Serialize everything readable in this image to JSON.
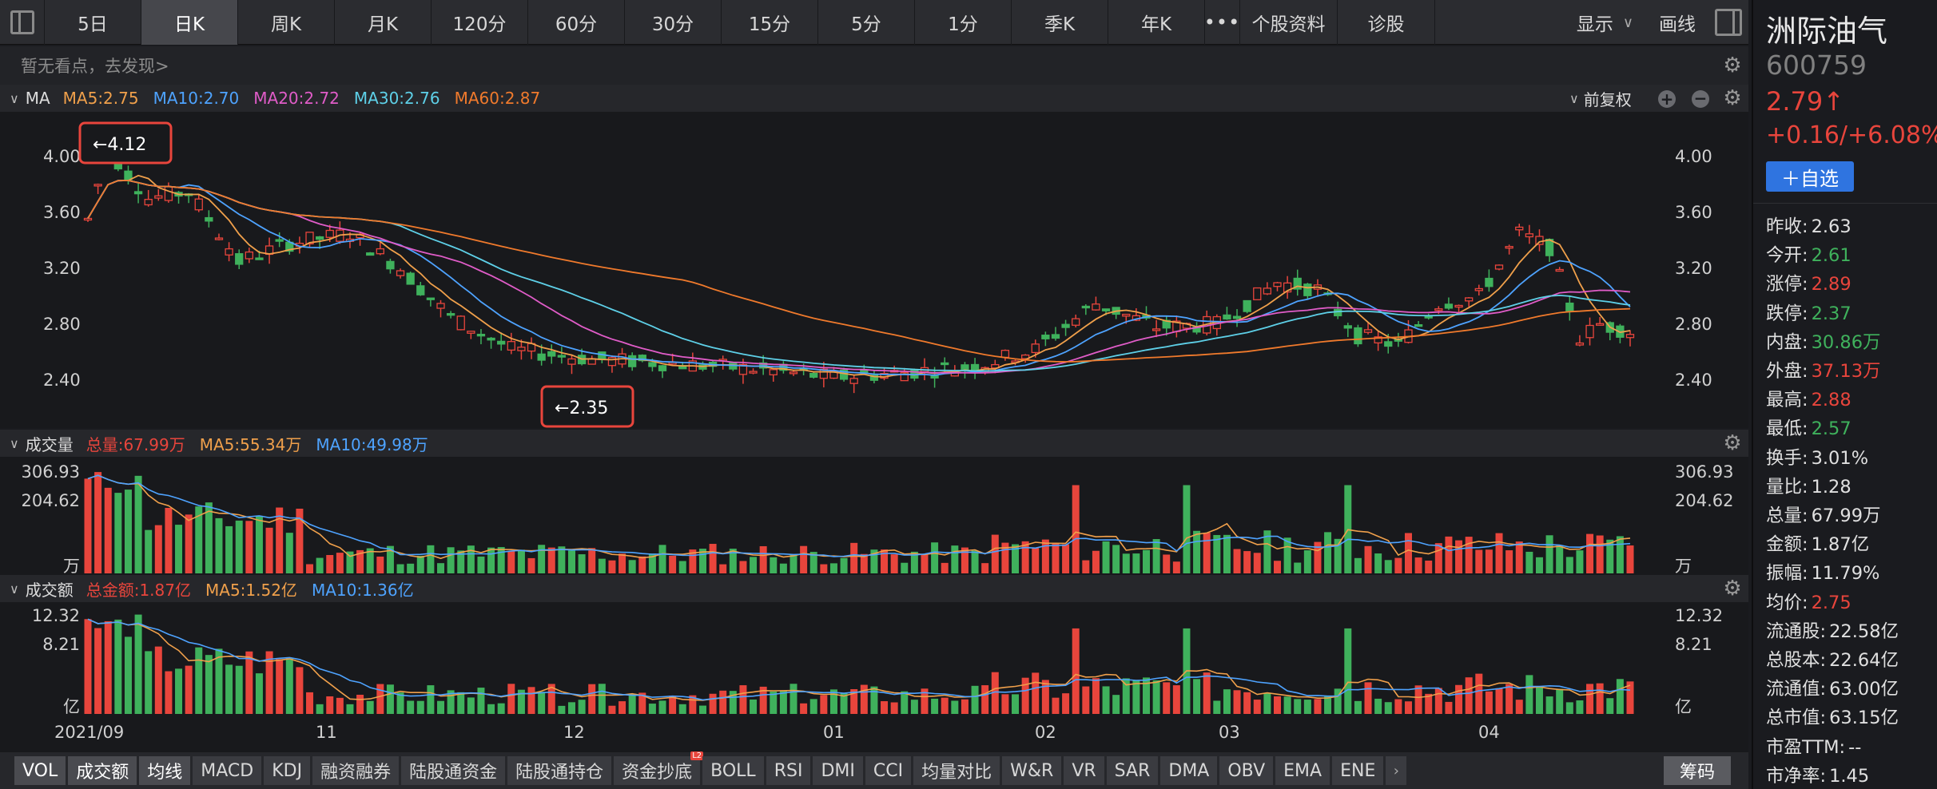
{
  "toolbar": {
    "tabs": [
      "5日",
      "日K",
      "周K",
      "月K",
      "120分",
      "60分",
      "30分",
      "15分",
      "5分",
      "1分",
      "季K",
      "年K"
    ],
    "active_tab": "日K",
    "more": "•••",
    "extra": [
      "个股资料",
      "诊股"
    ],
    "display_label": "显示",
    "draw_label": "画线"
  },
  "hint": "暂无看点，去发现>",
  "ma_pane": {
    "title": "MA",
    "items": [
      {
        "label": "MA5:2.75",
        "color": "#f0a04b"
      },
      {
        "label": "MA10:2.70",
        "color": "#4ea3ff"
      },
      {
        "label": "MA20:2.72",
        "color": "#e05cc8"
      },
      {
        "label": "MA30:2.76",
        "color": "#5ed0e8"
      },
      {
        "label": "MA60:2.87",
        "color": "#f07a2c"
      }
    ],
    "adjust_label": "前复权",
    "y_ticks": [
      "4.00",
      "3.60",
      "3.20",
      "2.80",
      "2.40"
    ],
    "max_marker": "←4.12",
    "min_marker": "←2.35"
  },
  "vol_pane": {
    "title": "成交量",
    "items": [
      {
        "label": "总量:67.99万",
        "color": "#e8453c"
      },
      {
        "label": "MA5:55.34万",
        "color": "#f0a04b"
      },
      {
        "label": "MA10:49.98万",
        "color": "#4ea3ff"
      }
    ],
    "y_ticks": [
      "306.93",
      "204.62"
    ],
    "unit": "万"
  },
  "amt_pane": {
    "title": "成交额",
    "items": [
      {
        "label": "总金额:1.87亿",
        "color": "#e8453c"
      },
      {
        "label": "MA5:1.52亿",
        "color": "#f0a04b"
      },
      {
        "label": "MA10:1.36亿",
        "color": "#4ea3ff"
      }
    ],
    "y_ticks": [
      "12.32",
      "8.21"
    ],
    "unit": "亿"
  },
  "x_labels": [
    "2021/09",
    "11",
    "12",
    "01",
    "02",
    "03",
    "04"
  ],
  "stock": {
    "name": "洲际油气",
    "code": "600759",
    "price": "2.79↑",
    "change": "+0.16/+6.08%",
    "watch_button": "＋自选"
  },
  "quote": [
    {
      "k": "昨收:",
      "v": "2.63",
      "c": "#e0e0e0"
    },
    {
      "k": "今开:",
      "v": "2.61",
      "c": "#3fb15c"
    },
    {
      "k": "涨停:",
      "v": "2.89",
      "c": "#e8453c"
    },
    {
      "k": "跌停:",
      "v": "2.37",
      "c": "#3fb15c"
    },
    {
      "k": "内盘:",
      "v": "30.86万",
      "c": "#3fb15c"
    },
    {
      "k": "外盘:",
      "v": "37.13万",
      "c": "#e8453c"
    },
    {
      "k": "最高:",
      "v": "2.88",
      "c": "#e8453c"
    },
    {
      "k": "最低:",
      "v": "2.57",
      "c": "#3fb15c"
    },
    {
      "k": "换手:",
      "v": "3.01%",
      "c": "#e0e0e0"
    },
    {
      "k": "量比:",
      "v": "1.28",
      "c": "#e0e0e0"
    },
    {
      "k": "总量:",
      "v": "67.99万",
      "c": "#e0e0e0"
    },
    {
      "k": "金额:",
      "v": "1.87亿",
      "c": "#e0e0e0"
    },
    {
      "k": "振幅:",
      "v": "11.79%",
      "c": "#e0e0e0"
    },
    {
      "k": "均价:",
      "v": "2.75",
      "c": "#e8453c"
    },
    {
      "k": "流通股:",
      "v": "22.58亿",
      "c": "#e0e0e0"
    },
    {
      "k": "总股本:",
      "v": "22.64亿",
      "c": "#e0e0e0"
    },
    {
      "k": "流通值:",
      "v": "63.00亿",
      "c": "#e0e0e0"
    },
    {
      "k": "总市值:",
      "v": "63.15亿",
      "c": "#e0e0e0"
    },
    {
      "k": "市盈TTM:",
      "v": "--",
      "c": "#e0e0e0"
    },
    {
      "k": "市净率:",
      "v": "1.45",
      "c": "#e0e0e0"
    }
  ],
  "indicators": [
    "VOL",
    "成交额",
    "均线",
    "MACD",
    "KDJ",
    "融资融券",
    "陆股通资金",
    "陆股通持仓",
    "资金抄底",
    "BOLL",
    "RSI",
    "DMI",
    "CCI",
    "均量对比",
    "W&R",
    "VR",
    "SAR",
    "DMA",
    "OBV",
    "EMA",
    "ENE"
  ],
  "indicator_badge": "L2",
  "chip_button": "筹码"
}
